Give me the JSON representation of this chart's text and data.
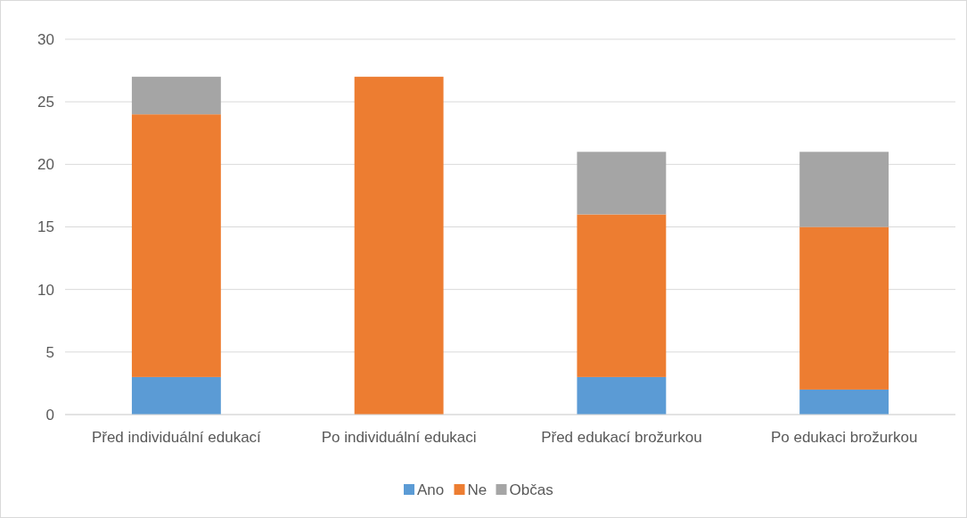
{
  "chart_data": {
    "type": "bar",
    "stacked": true,
    "categories": [
      "Před individuální edukací",
      "Po individuální edukaci",
      "Před edukací brožurkou",
      "Po edukaci brožurkou"
    ],
    "series": [
      {
        "name": "Ano",
        "color": "#5b9bd5",
        "values": [
          3,
          0,
          3,
          2
        ]
      },
      {
        "name": "Ne",
        "color": "#ed7d31",
        "values": [
          21,
          27,
          13,
          13
        ]
      },
      {
        "name": "Občas",
        "color": "#a5a5a5",
        "values": [
          3,
          0,
          5,
          6
        ]
      }
    ],
    "ylim": [
      0,
      30
    ],
    "yticks": [
      0,
      5,
      10,
      15,
      20,
      25,
      30
    ],
    "grid": "y",
    "legend": "bottom"
  }
}
